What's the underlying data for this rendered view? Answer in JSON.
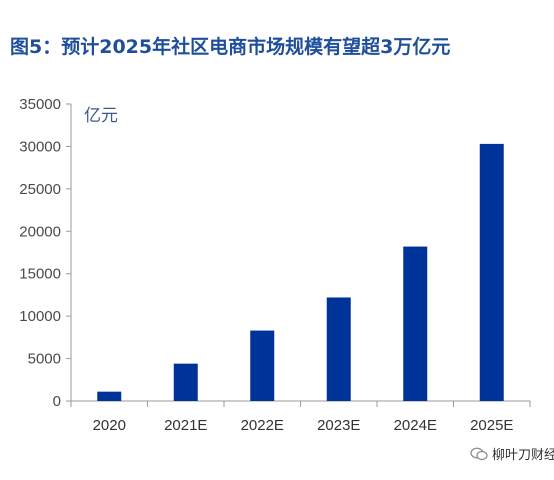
{
  "title": "图5：预计2025年社区电商市场规模有望超3万亿元",
  "watermark": "柳叶刀财经",
  "colors": {
    "bar": "#003399",
    "axis": "#9a9a9a",
    "title": "#1f4e9a"
  },
  "chart_data": {
    "type": "bar",
    "title": "图5：预计2025年社区电商市场规模有望超3万亿元",
    "unit_label": "亿元",
    "categories": [
      "2020",
      "2021E",
      "2022E",
      "2023E",
      "2024E",
      "2025E"
    ],
    "values": [
      1100,
      4400,
      8300,
      12200,
      18200,
      30300
    ],
    "ylim": [
      0,
      35000
    ],
    "yticks": [
      0,
      5000,
      10000,
      15000,
      20000,
      25000,
      30000,
      35000
    ],
    "grid": false,
    "legend": "none"
  }
}
